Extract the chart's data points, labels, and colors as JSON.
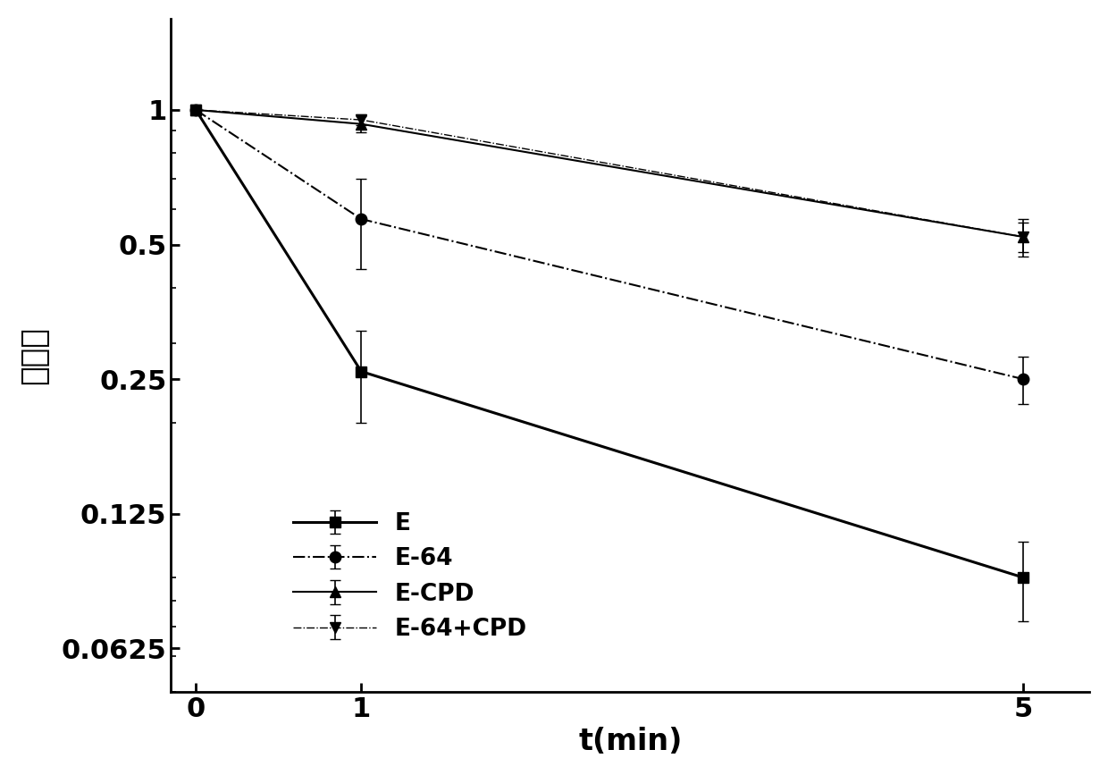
{
  "series": [
    {
      "label": "E",
      "x": [
        0,
        1,
        5
      ],
      "y": [
        1.0,
        0.26,
        0.09
      ],
      "yerr": [
        0.0,
        0.06,
        0.018
      ],
      "linestyle": "-",
      "marker": "s",
      "linewidth": 2.2
    },
    {
      "label": "E-64",
      "x": [
        0,
        1,
        5
      ],
      "y": [
        1.0,
        0.57,
        0.25
      ],
      "yerr": [
        0.0,
        0.13,
        0.03
      ],
      "linestyle": "-.",
      "marker": "o",
      "linewidth": 1.5
    },
    {
      "label": "E-CPD",
      "x": [
        0,
        1,
        5
      ],
      "y": [
        1.0,
        0.93,
        0.52
      ],
      "yerr": [
        0.0,
        0.04,
        0.04
      ],
      "linestyle": "-",
      "marker": "^",
      "linewidth": 1.5
    },
    {
      "label": "E-64+CPD",
      "x": [
        0,
        1,
        5
      ],
      "y": [
        1.0,
        0.95,
        0.52
      ],
      "yerr": [
        0.0,
        0.025,
        0.05
      ],
      "linestyle": "-.",
      "marker": "v",
      "linewidth": 1.0
    }
  ],
  "xlabel": "t(min)",
  "ylabel": "存活率",
  "ylim_log": [
    0.05,
    1.6
  ],
  "yticks": [
    0.0625,
    0.125,
    0.25,
    0.5,
    1.0
  ],
  "ytick_labels": [
    "0.0625",
    "0.125",
    "0.25",
    "0.5",
    "1"
  ],
  "xticks": [
    0,
    1,
    5
  ],
  "background_color": "#ffffff",
  "markersize": 9,
  "capsize": 4,
  "color": "#000000"
}
